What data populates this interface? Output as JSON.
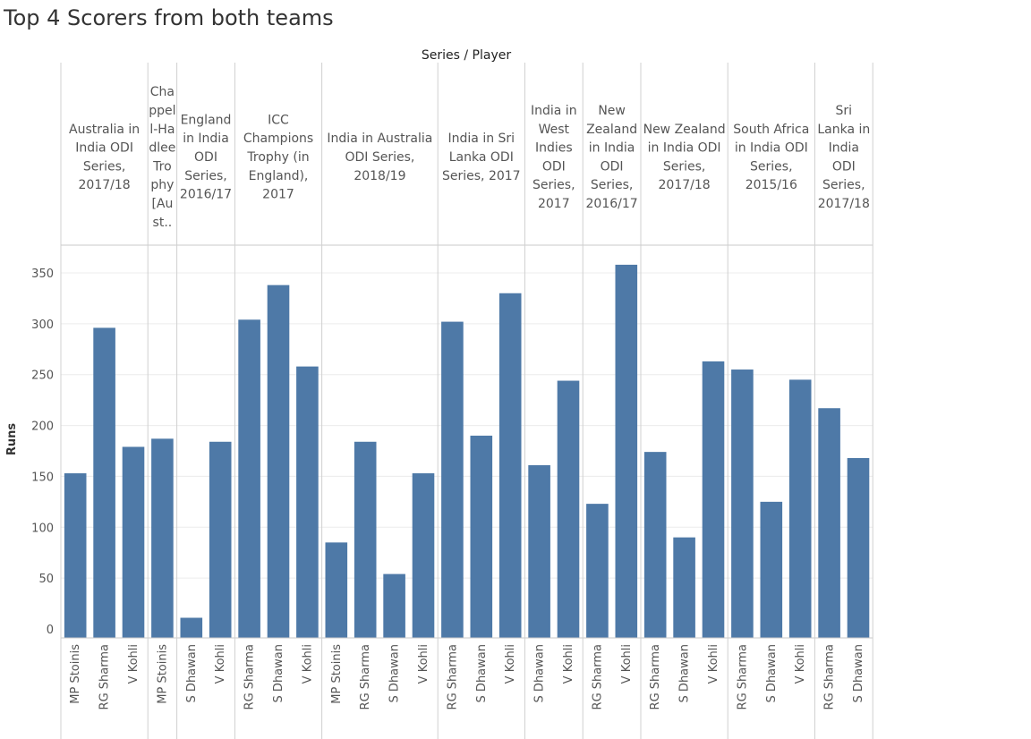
{
  "page_title": "Top 4 Scorers from both teams",
  "chart_data": {
    "type": "bar",
    "title": "Top 4 Scorers from both teams",
    "column_header": "Series / Player",
    "ylabel": "Runs",
    "xlabel": "",
    "ylim": [
      0,
      375
    ],
    "yticks": [
      0,
      50,
      100,
      150,
      200,
      250,
      300,
      350
    ],
    "grid": true,
    "bar_color": "#4e79a7",
    "groups": [
      {
        "series": "Australia in India ODI Series, 2017/18",
        "header_lines": [
          "Australia in",
          "India ODI",
          "Series,",
          "2017/18"
        ],
        "bars": [
          {
            "player": "MP Stoinis",
            "runs": 153
          },
          {
            "player": "RG Sharma",
            "runs": 296
          },
          {
            "player": "V Kohli",
            "runs": 179
          }
        ]
      },
      {
        "series": "Chappell-Hadlee Trophy [Aust..",
        "header_lines": [
          "Cha",
          "ppel",
          "l-Ha",
          "dlee",
          "Tro",
          "phy",
          "[Au",
          "st.."
        ],
        "bars": [
          {
            "player": "MP Stoinis",
            "runs": 187
          }
        ]
      },
      {
        "series": "England in India ODI Series, 2016/17",
        "header_lines": [
          "England",
          "in India",
          "ODI",
          "Series,",
          "2016/17"
        ],
        "bars": [
          {
            "player": "S Dhawan",
            "runs": 11
          },
          {
            "player": "V Kohli",
            "runs": 184
          }
        ]
      },
      {
        "series": "ICC Champions Trophy (in England), 2017",
        "header_lines": [
          "ICC",
          "Champions",
          "Trophy (in",
          "England),",
          "2017"
        ],
        "bars": [
          {
            "player": "RG Sharma",
            "runs": 304
          },
          {
            "player": "S Dhawan",
            "runs": 338
          },
          {
            "player": "V Kohli",
            "runs": 258
          }
        ]
      },
      {
        "series": "India in Australia ODI Series, 2018/19",
        "header_lines": [
          "India in Australia",
          "ODI Series,",
          "2018/19"
        ],
        "bars": [
          {
            "player": "MP Stoinis",
            "runs": 85
          },
          {
            "player": "RG Sharma",
            "runs": 184
          },
          {
            "player": "S Dhawan",
            "runs": 54
          },
          {
            "player": "V Kohli",
            "runs": 153
          }
        ]
      },
      {
        "series": "India in Sri Lanka ODI Series, 2017",
        "header_lines": [
          "India in Sri",
          "Lanka ODI",
          "Series, 2017"
        ],
        "bars": [
          {
            "player": "RG Sharma",
            "runs": 302
          },
          {
            "player": "S Dhawan",
            "runs": 190
          },
          {
            "player": "V Kohli",
            "runs": 330
          }
        ]
      },
      {
        "series": "India in West Indies ODI Series, 2017",
        "header_lines": [
          "India in",
          "West",
          "Indies",
          "ODI",
          "Series,",
          "2017"
        ],
        "bars": [
          {
            "player": "S Dhawan",
            "runs": 161
          },
          {
            "player": "V Kohli",
            "runs": 244
          }
        ]
      },
      {
        "series": "New Zealand in India ODI Series, 2016/17",
        "header_lines": [
          "New",
          "Zealand",
          "in India",
          "ODI",
          "Series,",
          "2016/17"
        ],
        "bars": [
          {
            "player": "RG Sharma",
            "runs": 123
          },
          {
            "player": "V Kohli",
            "runs": 358
          }
        ]
      },
      {
        "series": "New Zealand in India ODI Series, 2017/18",
        "header_lines": [
          "New Zealand",
          "in India ODI",
          "Series,",
          "2017/18"
        ],
        "bars": [
          {
            "player": "RG Sharma",
            "runs": 174
          },
          {
            "player": "S Dhawan",
            "runs": 90
          },
          {
            "player": "V Kohli",
            "runs": 263
          }
        ]
      },
      {
        "series": "South Africa in India ODI Series, 2015/16",
        "header_lines": [
          "South Africa",
          "in India ODI",
          "Series,",
          "2015/16"
        ],
        "bars": [
          {
            "player": "RG Sharma",
            "runs": 255
          },
          {
            "player": "S Dhawan",
            "runs": 125
          },
          {
            "player": "V Kohli",
            "runs": 245
          }
        ]
      },
      {
        "series": "Sri Lanka in India ODI Series, 2017/18",
        "header_lines": [
          "Sri",
          "Lanka in",
          "India",
          "ODI",
          "Series,",
          "2017/18"
        ],
        "bars": [
          {
            "player": "RG Sharma",
            "runs": 217
          },
          {
            "player": "S Dhawan",
            "runs": 168
          }
        ]
      }
    ]
  }
}
